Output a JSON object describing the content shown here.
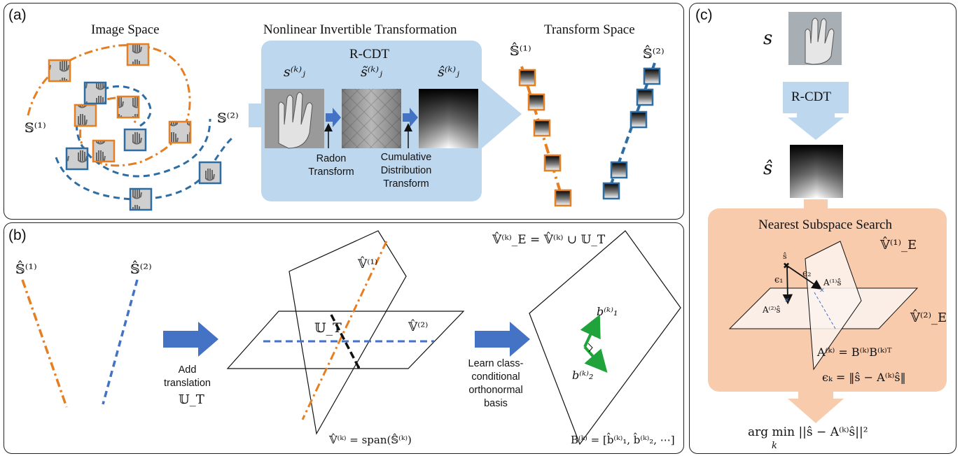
{
  "panel_a": {
    "label": "(a)",
    "image_space_title": "Image Space",
    "transform_title": "Nonlinear Invertible Transformation",
    "transform_space_title": "Transform Space",
    "rcdt_label": "R-CDT",
    "s1": "𝕊⁽¹⁾",
    "s2": "𝕊⁽²⁾",
    "sj": "s⁽ᵏ⁾ⱼ",
    "sj_tilde": "s̃⁽ᵏ⁾ⱼ",
    "sj_hat": "ŝ⁽ᵏ⁾ⱼ",
    "radon": "Radon\nTransform",
    "cdt": "Cumulative\nDistribution\nTransform",
    "shat1": "𝕊̂⁽¹⁾",
    "shat2": "𝕊̂⁽²⁾"
  },
  "panel_b": {
    "label": "(b)",
    "shat1": "𝕊̂⁽¹⁾",
    "shat2": "𝕊̂⁽²⁾",
    "add_translation": "Add\ntranslation",
    "ut": "𝕌_T",
    "ut_plane": "𝕌_T",
    "v1": "𝕍̂⁽¹⁾",
    "v2": "𝕍̂⁽²⁾",
    "span_eq": "𝕍̂⁽ᵏ⁾ = span(𝕊̂⁽ᵏ⁾)",
    "learn_basis": "Learn class-\nconditional\northonormal\nbasis",
    "ve_eq": "𝕍̂⁽ᵏ⁾_E = 𝕍̂⁽ᵏ⁾ ∪ 𝕌_T",
    "b1": "b⁽ᵏ⁾₁",
    "b2": "b⁽ᵏ⁾₂",
    "basis_eq": "B⁽ᵏ⁾ = [b̂⁽ᵏ⁾₁, b̂⁽ᵏ⁾₂, ⋯]"
  },
  "panel_c": {
    "label": "(c)",
    "s": "s",
    "rcdt_label": "R-CDT",
    "shat": "ŝ",
    "nss_title": "Nearest Subspace Search",
    "ve1": "𝕍̂⁽¹⁾_E",
    "ve2": "𝕍̂⁽²⁾_E",
    "pt_shat": "ŝ",
    "eps1": "ϵ₁",
    "eps2": "ϵ₂",
    "a1s": "A⁽¹⁾ŝ",
    "a2s": "A⁽²⁾ŝ",
    "a_eq": "A⁽ᵏ⁾ = B⁽ᵏ⁾B⁽ᵏ⁾ᵀ",
    "eps_eq": "ϵₖ = ‖ŝ − A⁽ᵏ⁾ŝ‖",
    "argmin_eq": "arg min ||ŝ − A⁽ᵏ⁾ŝ||²",
    "argmin_sub": "k"
  },
  "colors": {
    "orange": "#E67E22",
    "blue": "#2E6DA4",
    "blue_arrow": "#4472C4",
    "light_blue": "#BDD7EE",
    "light_orange": "#F8CBAD",
    "green": "#1FA33A"
  }
}
